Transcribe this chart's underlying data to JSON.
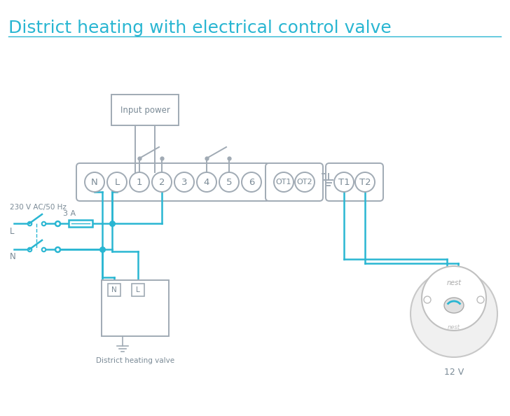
{
  "title": "District heating with electrical control valve",
  "title_color": "#29b6d2",
  "title_fontsize": 18,
  "bg_color": "#ffffff",
  "wire_color": "#29b6d2",
  "component_color": "#a0aab4",
  "text_color": "#7a8a96",
  "terminal_labels": [
    "N",
    "L",
    "1",
    "2",
    "3",
    "4",
    "5",
    "6"
  ],
  "terminal_labels2": [
    "OT1",
    "OT2"
  ],
  "terminal_labels3": [
    "T1",
    "T2"
  ],
  "left_label": "230 V AC/50 Hz",
  "fuse_label": "3 A",
  "box_label": "Input power",
  "valve_label": "District heating valve",
  "nest_label": "12 V"
}
